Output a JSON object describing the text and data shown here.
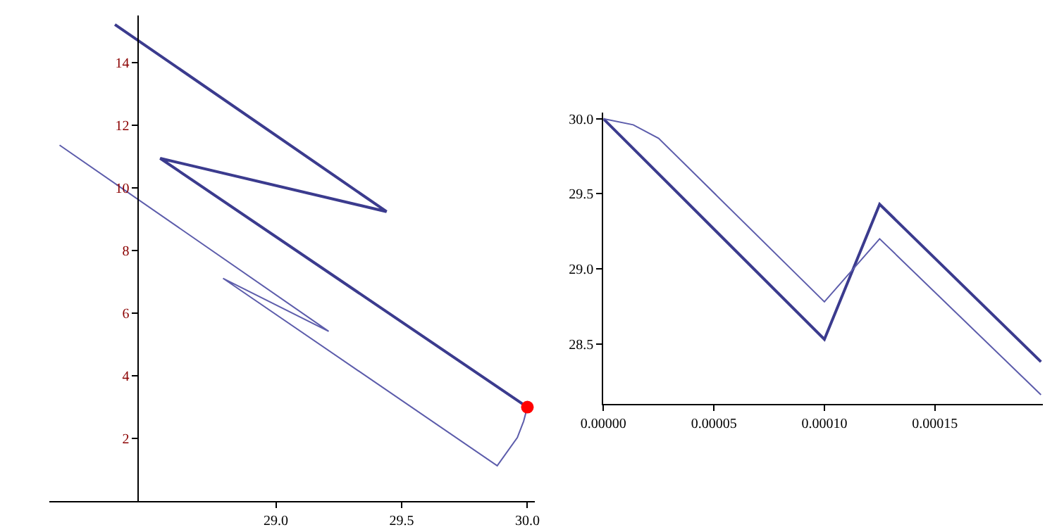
{
  "chart_data": [
    {
      "type": "line",
      "xlim": [
        28.1,
        30.03
      ],
      "ylim": [
        0,
        15.5
      ],
      "xticks": [
        {
          "value": 29,
          "label": "29.0"
        },
        29.5,
        {
          "value": 30,
          "label": "30.0"
        }
      ],
      "yticks": [
        2,
        4,
        6,
        8,
        10,
        12,
        14
      ],
      "marker": "none",
      "line_style": "solid",
      "series": [
        {
          "color": "#3b3b8e",
          "x": [
            28.36,
            29.44,
            28.54,
            30.0
          ],
          "values": [
            15.21,
            9.24,
            10.94,
            3.0
          ]
        },
        {
          "color": "#5c5cab",
          "x": [
            28.14,
            29.21,
            28.79,
            29.88,
            29.96,
            29.985,
            30.0
          ],
          "values": [
            11.36,
            5.42,
            7.11,
            1.13,
            2.03,
            2.55,
            3.0
          ]
        },
        {
          "type": "scatter",
          "marker": "circle",
          "color": "#ff0000",
          "x": [
            30.0
          ],
          "values": [
            3.0
          ]
        }
      ]
    },
    {
      "type": "line",
      "xlim": [
        0,
        0.000199
      ],
      "ylim": [
        28.1,
        30.04
      ],
      "xticks": [
        {
          "value": 0,
          "label": "0.00000"
        },
        {
          "value": 5e-05,
          "label": "0.00005"
        },
        {
          "value": 0.0001,
          "label": "0.00010"
        },
        {
          "value": 0.00015,
          "label": "0.00015"
        }
      ],
      "yticks": [
        {
          "value": 28.5,
          "label": "28.5"
        },
        {
          "value": 29,
          "label": "29.0"
        },
        {
          "value": 29.5,
          "label": "29.5"
        },
        {
          "value": 30,
          "label": "30.0"
        }
      ],
      "marker": "none",
      "line_style": "solid",
      "series": [
        {
          "color": "#3b3b8e",
          "x": [
            0,
            0.0001,
            0.000125,
            0.000198
          ],
          "values": [
            30.0,
            28.53,
            29.43,
            28.38
          ]
        },
        {
          "color": "#5c5cab",
          "x": [
            0,
            1.35e-05,
            2.5e-05,
            0.0001,
            0.000125,
            0.000198
          ],
          "values": [
            30.0,
            29.96,
            29.87,
            28.78,
            29.2,
            28.16
          ]
        }
      ]
    }
  ]
}
